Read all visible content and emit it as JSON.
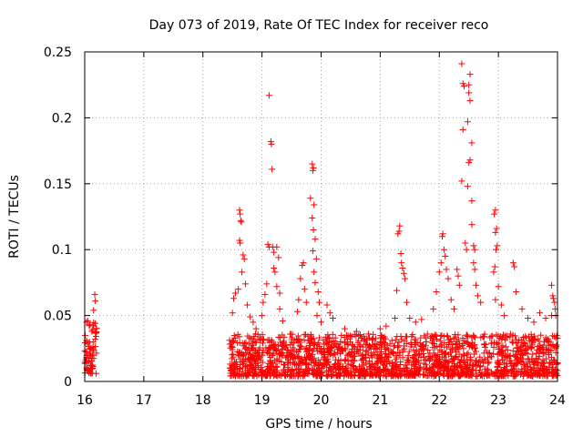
{
  "chart_data": {
    "type": "scatter",
    "title": "Day 073 of 2019, Rate Of TEC Index for receiver reco",
    "xlabel": "GPS time / hours",
    "ylabel": "ROTI / TECUs",
    "xlim": [
      16,
      24
    ],
    "ylim": [
      0,
      0.25
    ],
    "xticks": [
      "16",
      "17",
      "18",
      "19",
      "20",
      "21",
      "22",
      "23",
      "24"
    ],
    "yticks": [
      "0",
      "0.05",
      "0.1",
      "0.15",
      "0.2",
      "0.25"
    ],
    "grid": true,
    "marker": "+",
    "series": [
      {
        "name": "ROTI",
        "color": "#ff0000",
        "points": [
          [
            16.03,
            0.045
          ],
          [
            16.05,
            0.046
          ],
          [
            16.06,
            0.02
          ],
          [
            16.07,
            0.015
          ],
          [
            16.08,
            0.03
          ],
          [
            16.09,
            0.043
          ],
          [
            16.1,
            0.012
          ],
          [
            16.11,
            0.025
          ],
          [
            16.12,
            0.038
          ],
          [
            16.13,
            0.01
          ],
          [
            16.15,
            0.054
          ],
          [
            16.17,
            0.066
          ],
          [
            16.18,
            0.061
          ],
          [
            16.18,
            0.032
          ],
          [
            18.5,
            0.052
          ],
          [
            18.52,
            0.063
          ],
          [
            18.55,
            0.067
          ],
          [
            18.6,
            0.07
          ],
          [
            18.62,
            0.13
          ],
          [
            18.63,
            0.127
          ],
          [
            18.64,
            0.122
          ],
          [
            18.65,
            0.121
          ],
          [
            18.62,
            0.107
          ],
          [
            18.63,
            0.105
          ],
          [
            18.68,
            0.096
          ],
          [
            18.7,
            0.093
          ],
          [
            18.66,
            0.083
          ],
          [
            18.72,
            0.074
          ],
          [
            18.75,
            0.058
          ],
          [
            18.8,
            0.049
          ],
          [
            18.85,
            0.045
          ],
          [
            18.9,
            0.04
          ],
          [
            19.0,
            0.05
          ],
          [
            19.02,
            0.06
          ],
          [
            19.05,
            0.066
          ],
          [
            19.08,
            0.074
          ],
          [
            19.12,
            0.217
          ],
          [
            19.15,
            0.182
          ],
          [
            19.16,
            0.18
          ],
          [
            19.17,
            0.161
          ],
          [
            19.1,
            0.104
          ],
          [
            19.12,
            0.102
          ],
          [
            19.18,
            0.102
          ],
          [
            19.2,
            0.098
          ],
          [
            19.25,
            0.102
          ],
          [
            19.28,
            0.094
          ],
          [
            19.2,
            0.086
          ],
          [
            19.22,
            0.083
          ],
          [
            19.25,
            0.072
          ],
          [
            19.3,
            0.067
          ],
          [
            19.3,
            0.055
          ],
          [
            19.35,
            0.046
          ],
          [
            19.6,
            0.053
          ],
          [
            19.62,
            0.062
          ],
          [
            19.65,
            0.078
          ],
          [
            19.68,
            0.088
          ],
          [
            19.7,
            0.09
          ],
          [
            19.72,
            0.07
          ],
          [
            19.75,
            0.06
          ],
          [
            19.85,
            0.165
          ],
          [
            19.87,
            0.162
          ],
          [
            19.86,
            0.16
          ],
          [
            19.82,
            0.139
          ],
          [
            19.88,
            0.134
          ],
          [
            19.85,
            0.124
          ],
          [
            19.87,
            0.115
          ],
          [
            19.9,
            0.108
          ],
          [
            19.86,
            0.099
          ],
          [
            19.92,
            0.093
          ],
          [
            19.88,
            0.083
          ],
          [
            19.9,
            0.075
          ],
          [
            19.95,
            0.068
          ],
          [
            19.97,
            0.06
          ],
          [
            19.93,
            0.05
          ],
          [
            20.0,
            0.045
          ],
          [
            20.1,
            0.058
          ],
          [
            20.15,
            0.052
          ],
          [
            20.2,
            0.048
          ],
          [
            20.4,
            0.04
          ],
          [
            20.6,
            0.038
          ],
          [
            20.8,
            0.036
          ],
          [
            21.0,
            0.04
          ],
          [
            21.1,
            0.042
          ],
          [
            21.25,
            0.048
          ],
          [
            21.28,
            0.069
          ],
          [
            21.3,
            0.112
          ],
          [
            21.32,
            0.114
          ],
          [
            21.33,
            0.118
          ],
          [
            21.35,
            0.097
          ],
          [
            21.36,
            0.09
          ],
          [
            21.38,
            0.086
          ],
          [
            21.4,
            0.082
          ],
          [
            21.42,
            0.078
          ],
          [
            21.45,
            0.06
          ],
          [
            21.5,
            0.048
          ],
          [
            21.6,
            0.045
          ],
          [
            21.7,
            0.047
          ],
          [
            21.9,
            0.055
          ],
          [
            21.95,
            0.068
          ],
          [
            22.0,
            0.083
          ],
          [
            22.03,
            0.09
          ],
          [
            22.05,
            0.11
          ],
          [
            22.06,
            0.112
          ],
          [
            22.08,
            0.1
          ],
          [
            22.1,
            0.095
          ],
          [
            22.12,
            0.085
          ],
          [
            22.15,
            0.078
          ],
          [
            22.2,
            0.062
          ],
          [
            22.25,
            0.055
          ],
          [
            22.3,
            0.085
          ],
          [
            22.32,
            0.08
          ],
          [
            22.34,
            0.073
          ],
          [
            22.38,
            0.241
          ],
          [
            22.4,
            0.226
          ],
          [
            22.42,
            0.224
          ],
          [
            22.4,
            0.191
          ],
          [
            22.38,
            0.152
          ],
          [
            22.44,
            0.105
          ],
          [
            22.46,
            0.1
          ],
          [
            22.52,
            0.233
          ],
          [
            22.5,
            0.225
          ],
          [
            22.5,
            0.219
          ],
          [
            22.52,
            0.213
          ],
          [
            22.48,
            0.197
          ],
          [
            22.55,
            0.181
          ],
          [
            22.52,
            0.168
          ],
          [
            22.5,
            0.166
          ],
          [
            22.48,
            0.148
          ],
          [
            22.55,
            0.137
          ],
          [
            22.55,
            0.119
          ],
          [
            22.58,
            0.103
          ],
          [
            22.6,
            0.1
          ],
          [
            22.58,
            0.09
          ],
          [
            22.6,
            0.085
          ],
          [
            22.62,
            0.073
          ],
          [
            22.65,
            0.065
          ],
          [
            22.7,
            0.06
          ],
          [
            22.95,
            0.13
          ],
          [
            22.93,
            0.127
          ],
          [
            22.97,
            0.116
          ],
          [
            22.95,
            0.113
          ],
          [
            22.98,
            0.103
          ],
          [
            22.96,
            0.1
          ],
          [
            22.94,
            0.087
          ],
          [
            22.92,
            0.083
          ],
          [
            23.0,
            0.072
          ],
          [
            22.95,
            0.062
          ],
          [
            23.05,
            0.058
          ],
          [
            23.1,
            0.05
          ],
          [
            23.25,
            0.09
          ],
          [
            23.27,
            0.087
          ],
          [
            23.3,
            0.068
          ],
          [
            23.4,
            0.055
          ],
          [
            23.5,
            0.048
          ],
          [
            23.6,
            0.045
          ],
          [
            23.7,
            0.052
          ],
          [
            23.8,
            0.048
          ],
          [
            23.9,
            0.05
          ],
          [
            23.9,
            0.073
          ],
          [
            23.92,
            0.065
          ],
          [
            23.93,
            0.063
          ],
          [
            23.95,
            0.06
          ],
          [
            23.96,
            0.055
          ],
          [
            23.97,
            0.05
          ]
        ]
      }
    ]
  }
}
